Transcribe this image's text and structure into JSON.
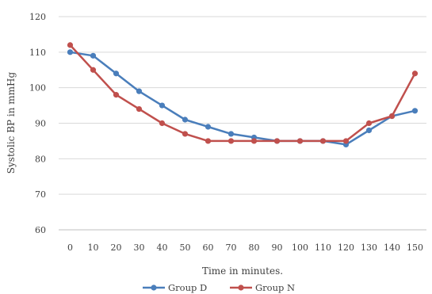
{
  "chart_data": {
    "type": "line",
    "title": "",
    "xlabel": "Time in minutes.",
    "ylabel": "Systolic BP in mmHg",
    "x": [
      0,
      10,
      20,
      30,
      40,
      50,
      60,
      70,
      80,
      90,
      100,
      110,
      120,
      130,
      140,
      150
    ],
    "ylim": [
      60,
      120
    ],
    "yticks": [
      60,
      70,
      80,
      90,
      100,
      110,
      120
    ],
    "grid": true,
    "legend_position": "bottom",
    "series": [
      {
        "name": "Group D",
        "color": "#4a7ebb",
        "values": [
          110,
          109,
          104,
          99,
          95,
          91,
          89,
          87,
          86,
          85,
          85,
          85,
          84,
          88,
          92,
          93.5
        ]
      },
      {
        "name": "Group N",
        "color": "#c0504d",
        "values": [
          112,
          105,
          98,
          94,
          90,
          87,
          85,
          85,
          85,
          85,
          85,
          85,
          85,
          90,
          92,
          104
        ]
      }
    ]
  }
}
